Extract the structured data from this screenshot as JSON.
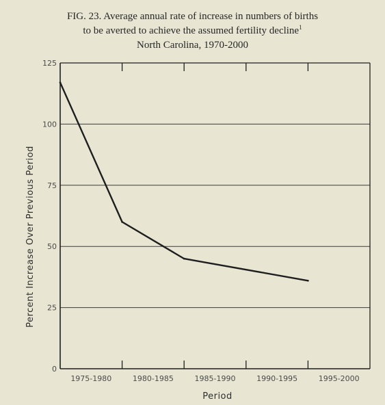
{
  "title": {
    "line1": "FIG. 23.   Average annual rate of increase in numbers of births",
    "line2": "to be averted to achieve the assumed fertility decline",
    "line2_sup": "1",
    "line3": "North Carolina, 1970-2000"
  },
  "chart_data": {
    "type": "line",
    "title": "Average annual rate of increase in numbers of births to be averted to achieve the assumed fertility decline",
    "subtitle": "North Carolina, 1970-2000",
    "xlabel": "Period",
    "ylabel": "Percent Increase Over Previous Period",
    "categories": [
      "1975-1980",
      "1980-1985",
      "1985-1990",
      "1990-1995",
      "1995-2000"
    ],
    "x_boundaries": [
      1975,
      1980,
      1985,
      1990,
      1995,
      2000
    ],
    "ylim": [
      0,
      125
    ],
    "yticks": [
      0,
      25,
      50,
      75,
      100,
      125
    ],
    "grid": true,
    "series": [
      {
        "x": [
          1975,
          1980,
          1985,
          1995
        ],
        "y": [
          117,
          60,
          45,
          36
        ]
      }
    ],
    "colors": {
      "background": "#e8e6d3",
      "line": "#1e1e1e",
      "grid": "#3a3a3a"
    }
  }
}
